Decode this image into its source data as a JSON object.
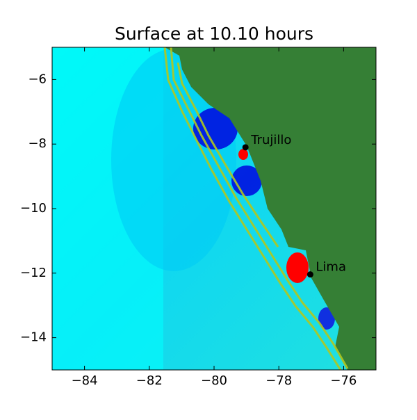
{
  "chart_data": {
    "type": "map",
    "title": "Surface at 10.10 hours",
    "xlim": [
      -85,
      -75
    ],
    "ylim": [
      -15,
      -5
    ],
    "xticks": [
      {
        "value": -84,
        "label": "−84"
      },
      {
        "value": -82,
        "label": "−82"
      },
      {
        "value": -80,
        "label": "−80"
      },
      {
        "value": -78,
        "label": "−78"
      },
      {
        "value": -76,
        "label": "−76"
      }
    ],
    "yticks": [
      {
        "value": -6,
        "label": "−6"
      },
      {
        "value": -8,
        "label": "−8"
      },
      {
        "value": -10,
        "label": "−10"
      },
      {
        "value": -12,
        "label": "−12"
      },
      {
        "value": -14,
        "label": "−14"
      }
    ],
    "points": [
      {
        "name": "Trujillo",
        "x": -79.03,
        "y": -8.1
      },
      {
        "name": "Lima",
        "x": -77.03,
        "y": -12.04
      }
    ],
    "color": "#000000"
  }
}
